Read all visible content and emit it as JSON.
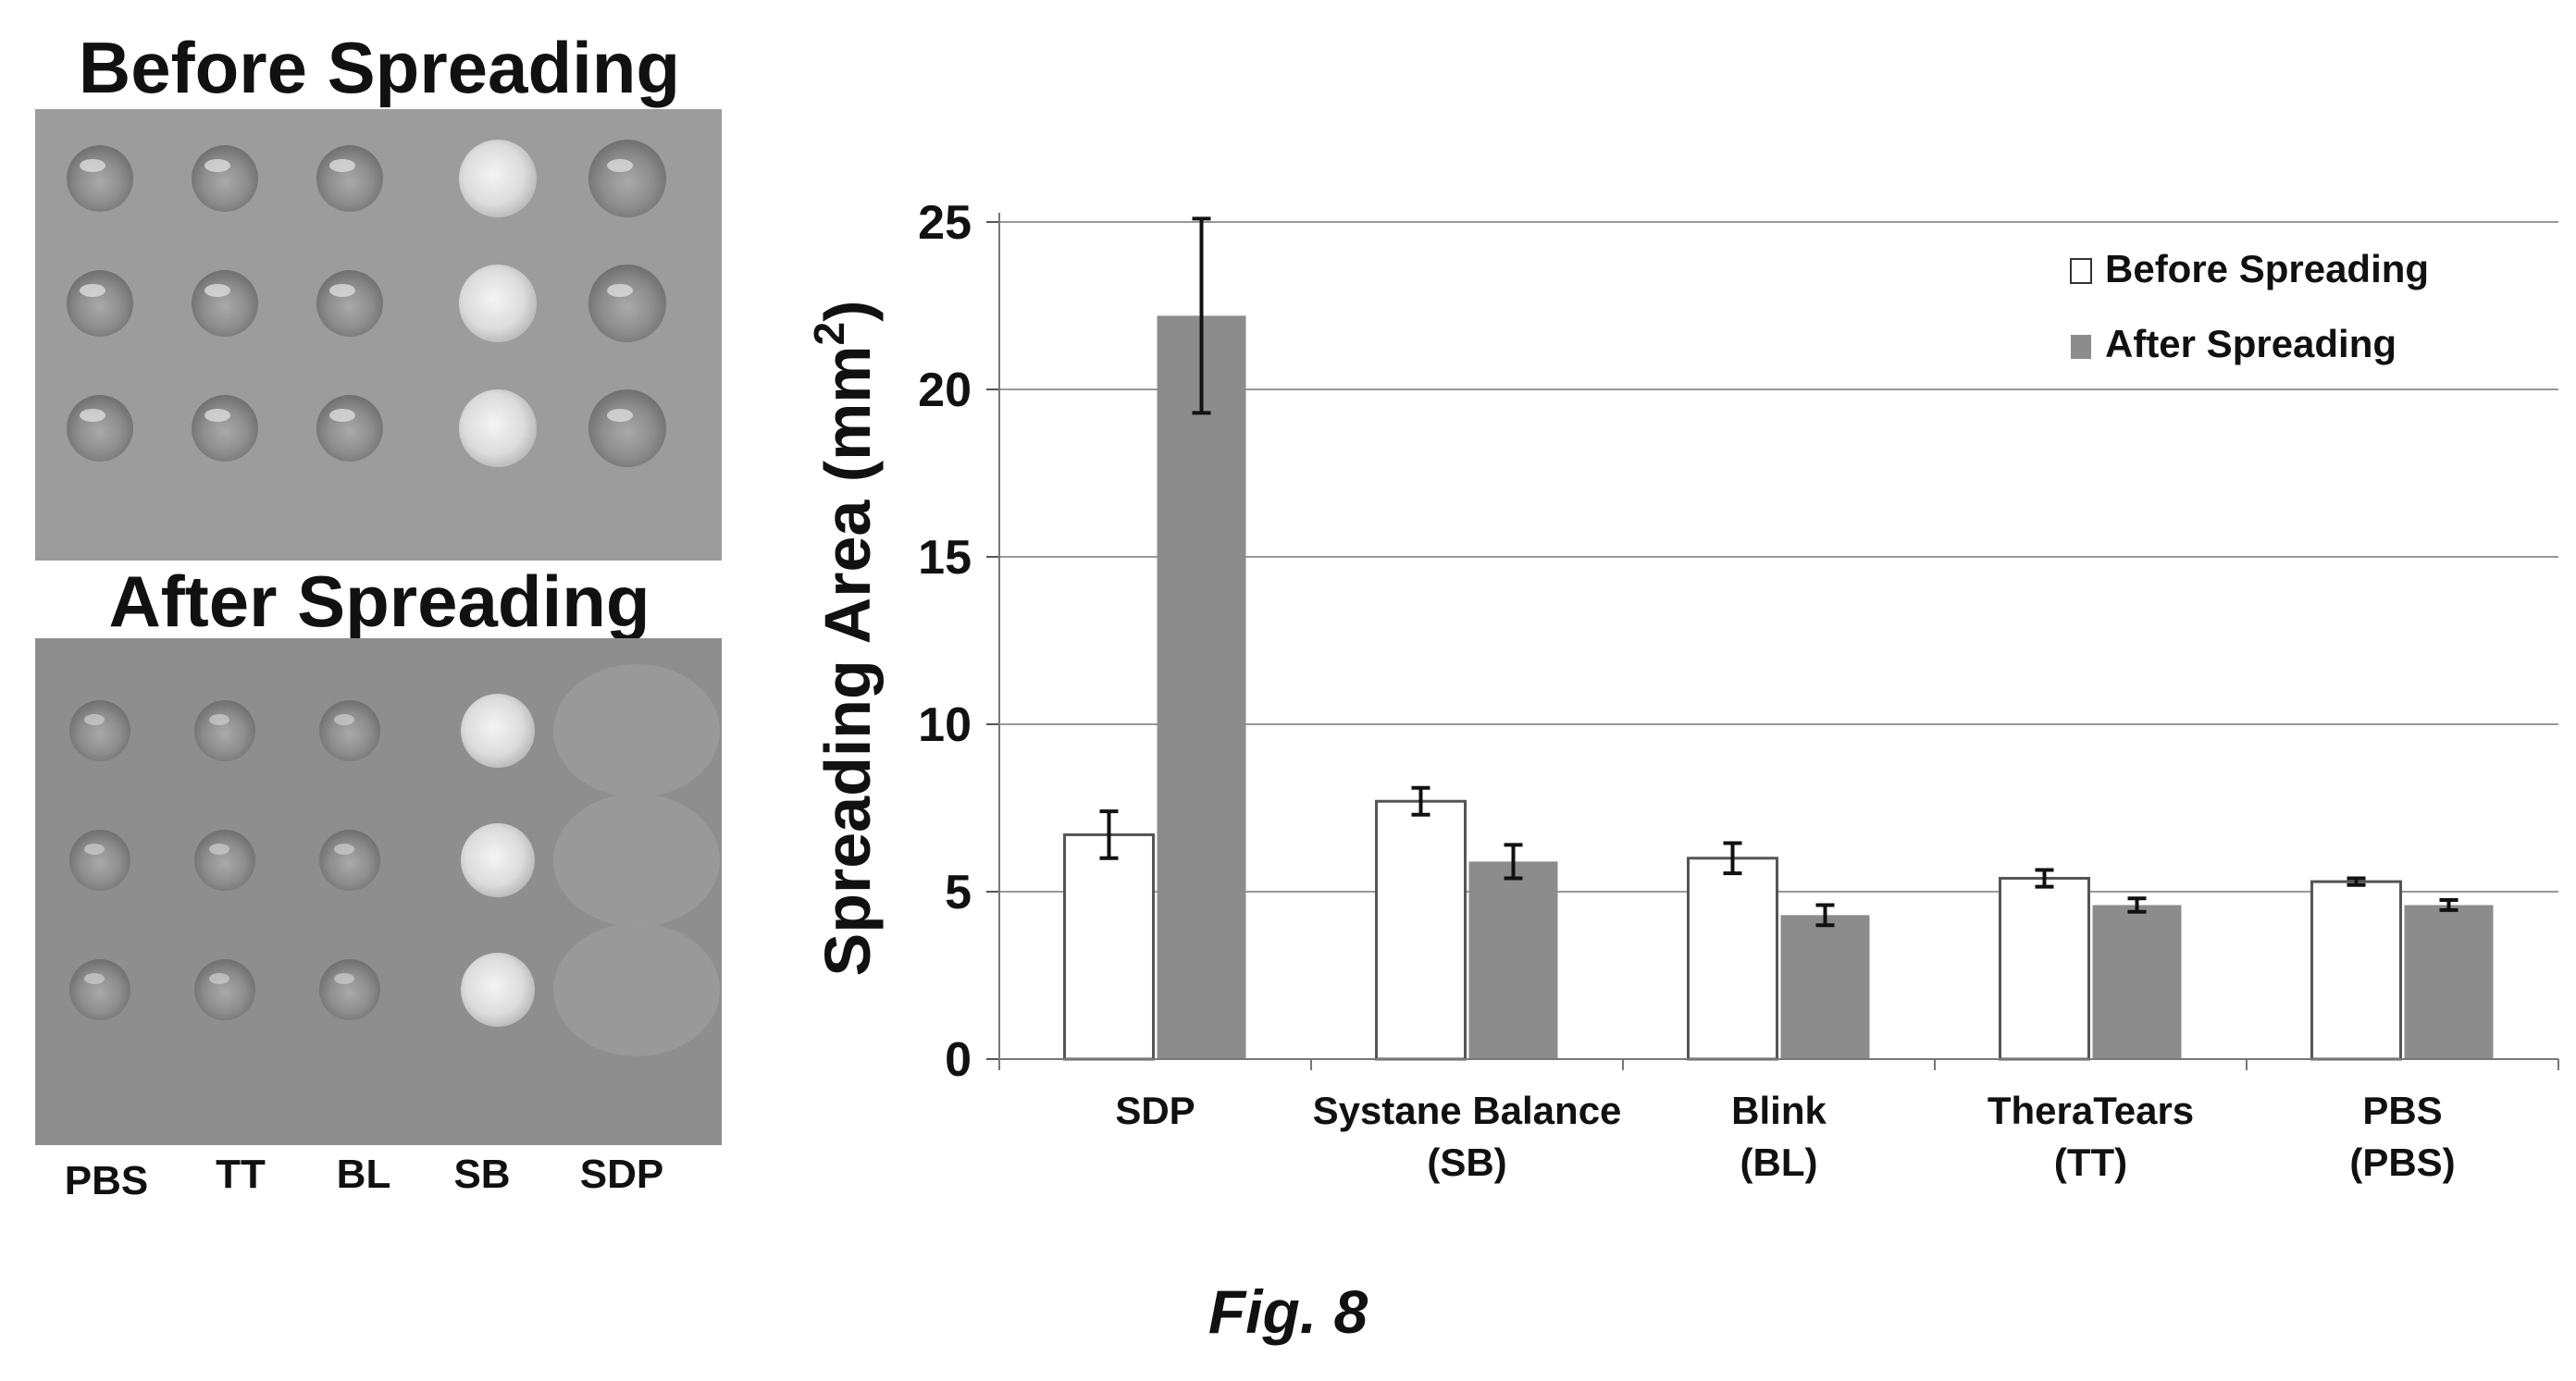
{
  "photo_panel": {
    "before_title": "Before Spreading",
    "after_title": "After Spreading",
    "column_labels": [
      "PBS",
      "TT",
      "BL",
      "SB",
      "SDP"
    ]
  },
  "figure_caption": "Fig. 8",
  "chart_data": {
    "type": "bar",
    "categories": [
      [
        "SDP"
      ],
      [
        "Systane Balance",
        "(SB)"
      ],
      [
        "Blink",
        "(BL)"
      ],
      [
        "TheraTears",
        "(TT)"
      ],
      [
        "PBS",
        "(PBS)"
      ]
    ],
    "series": [
      {
        "name": "Before Spreading",
        "values": [
          6.7,
          7.7,
          6.0,
          5.4,
          5.3
        ],
        "errors": [
          0.7,
          0.4,
          0.45,
          0.25,
          0.1
        ],
        "color": "#ffffff"
      },
      {
        "name": "After Spreading",
        "values": [
          22.2,
          5.9,
          4.3,
          4.6,
          4.6
        ],
        "errors": [
          2.9,
          0.5,
          0.3,
          0.2,
          0.15
        ],
        "color": "#8c8c8c"
      }
    ],
    "ylabel": "Spreading Area (mm",
    "ylabel_sup": "2",
    "ylabel_close": ")",
    "ylim": [
      0,
      25
    ],
    "yticks": [
      0,
      5,
      10,
      15,
      20,
      25
    ],
    "grid": true,
    "legend": "top-right"
  }
}
